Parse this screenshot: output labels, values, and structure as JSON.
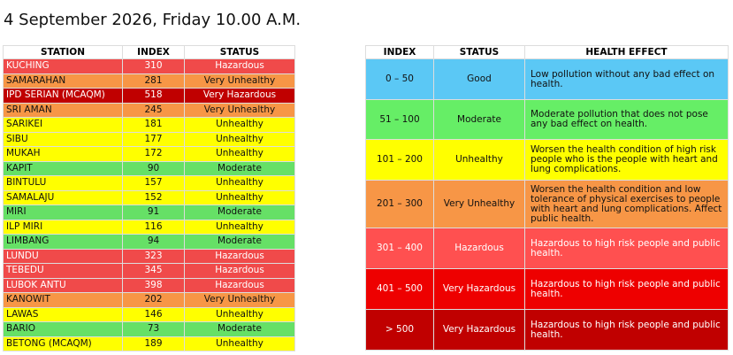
{
  "header": {
    "title": "4 September 2026, Friday 10.00 A.M."
  },
  "stations": {
    "columns": [
      "STATION",
      "INDEX",
      "STATUS"
    ],
    "rows": [
      {
        "station": "KUCHING",
        "index": 310,
        "status": "Hazardous",
        "color": "#f04a4a"
      },
      {
        "station": "SAMARAHAN",
        "index": 281,
        "status": "Very Unhealthy",
        "color": "#f79646"
      },
      {
        "station": "IPD SERIAN (MCAQM)",
        "index": 518,
        "status": "Very Hazardous",
        "color": "#c00000"
      },
      {
        "station": "SRI AMAN",
        "index": 245,
        "status": "Very Unhealthy",
        "color": "#f79646"
      },
      {
        "station": "SARIKEI",
        "index": 181,
        "status": "Unhealthy",
        "color": "#ffff00"
      },
      {
        "station": "SIBU",
        "index": 177,
        "status": "Unhealthy",
        "color": "#ffff00"
      },
      {
        "station": "MUKAH",
        "index": 172,
        "status": "Unhealthy",
        "color": "#ffff00"
      },
      {
        "station": "KAPIT",
        "index": 90,
        "status": "Moderate",
        "color": "#66e066"
      },
      {
        "station": "BINTULU",
        "index": 157,
        "status": "Unhealthy",
        "color": "#ffff00"
      },
      {
        "station": "SAMALAJU",
        "index": 152,
        "status": "Unhealthy",
        "color": "#ffff00"
      },
      {
        "station": "MIRI",
        "index": 91,
        "status": "Moderate",
        "color": "#66e066"
      },
      {
        "station": "ILP MIRI",
        "index": 116,
        "status": "Unhealthy",
        "color": "#ffff00"
      },
      {
        "station": "LIMBANG",
        "index": 94,
        "status": "Moderate",
        "color": "#66e066"
      },
      {
        "station": "LUNDU",
        "index": 323,
        "status": "Hazardous",
        "color": "#f04a4a"
      },
      {
        "station": "TEBEDU",
        "index": 345,
        "status": "Hazardous",
        "color": "#f04a4a"
      },
      {
        "station": "LUBOK ANTU",
        "index": 398,
        "status": "Hazardous",
        "color": "#f04a4a"
      },
      {
        "station": "KANOWIT",
        "index": 202,
        "status": "Very Unhealthy",
        "color": "#f79646"
      },
      {
        "station": "LAWAS",
        "index": 146,
        "status": "Unhealthy",
        "color": "#ffff00"
      },
      {
        "station": "BARIO",
        "index": 73,
        "status": "Moderate",
        "color": "#66e066"
      },
      {
        "station": "BETONG (MCAQM)",
        "index": 189,
        "status": "Unhealthy",
        "color": "#ffff00"
      }
    ]
  },
  "legend": {
    "columns": [
      "INDEX",
      "STATUS",
      "HEALTH EFFECT"
    ],
    "rows": [
      {
        "index": "0 – 50",
        "status": "Good",
        "effect": "Low pollution without any bad effect on health.",
        "color": "#5bc8f5"
      },
      {
        "index": "51 – 100",
        "status": "Moderate",
        "effect": "Moderate pollution that does not pose any bad effect on health.",
        "color": "#66ee66"
      },
      {
        "index": "101 – 200",
        "status": "Unhealthy",
        "effect": "Worsen the health condition of high risk people who is the people with heart and lung complications.",
        "color": "#ffff00"
      },
      {
        "index": "201 – 300",
        "status": "Very Unhealthy",
        "effect": "Worsen the health condition and low tolerance of physical exercises to people with heart and lung complications. Affect public health.",
        "color": "#f79646"
      },
      {
        "index": "301 – 400",
        "status": "Hazardous",
        "effect": "Hazardous to high risk people and public health.",
        "color": "#ff5050"
      },
      {
        "index": "401 – 500",
        "status": "Very Hazardous",
        "effect": "Hazardous to high risk people and public health.",
        "color": "#ee0000"
      },
      {
        "index": "> 500",
        "status": "Very Hazardous",
        "effect": "Hazardous to high risk people and public health.",
        "color": "#c00000"
      }
    ]
  }
}
